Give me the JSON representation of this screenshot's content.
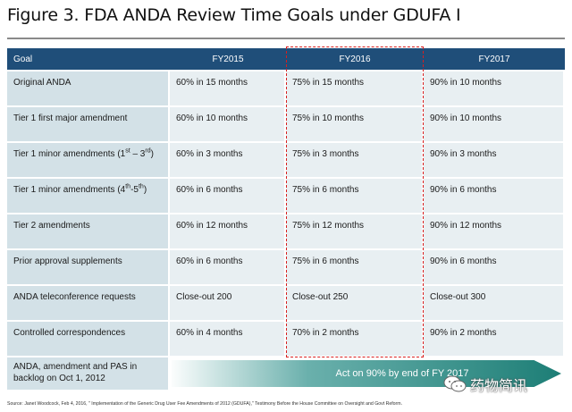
{
  "figure": {
    "title": "Figure 3. FDA ANDA Review Time Goals under GDUFA I"
  },
  "table": {
    "headers": [
      "Goal",
      "FY2015",
      "FY2016",
      "FY2017"
    ],
    "rows": [
      {
        "goal": "Original ANDA",
        "fy2015": "60% in 15 months",
        "fy2016": "75% in 15 months",
        "fy2017": "90% in 10 months"
      },
      {
        "goal": "Tier 1 first major amendment",
        "fy2015": "60% in 10 months",
        "fy2016": "75% in 10 months",
        "fy2017": "90% in 10 months"
      },
      {
        "goal_pre": "Tier 1 minor amendments (1",
        "goal_sup1": "st",
        "goal_mid": " – 3",
        "goal_sup2": "rd",
        "goal_post": ")",
        "fy2015": "60% in 3 months",
        "fy2016": "75% in 3 months",
        "fy2017": "90% in 3 months"
      },
      {
        "goal_pre": "Tier 1 minor amendments (4",
        "goal_sup1": "th",
        "goal_mid": "-5",
        "goal_sup2": "th",
        "goal_post": ")",
        "fy2015": "60% in 6 months",
        "fy2016": "75% in 6 months",
        "fy2017": "90% in 6 months"
      },
      {
        "goal": "Tier 2 amendments",
        "fy2015": "60% in 12 months",
        "fy2016": "75% in 12 months",
        "fy2017": "90% in 12 months"
      },
      {
        "goal": "Prior approval supplements",
        "fy2015": "60% in 6 months",
        "fy2016": "75% in 6 months",
        "fy2017": "90% in 6 months"
      },
      {
        "goal": "ANDA teleconference requests",
        "fy2015": "Close-out 200",
        "fy2016": "Close-out 250",
        "fy2017": "Close-out 300"
      },
      {
        "goal": "Controlled correspondences",
        "fy2015": "60% in 4 months",
        "fy2016": "70% in 2 months",
        "fy2017": "90% in 2 months"
      }
    ],
    "backlog": {
      "label": "ANDA, amendment and PAS in backlog on Oct 1, 2012",
      "arrow_text": "Act on 90% by end of FY 2017"
    }
  },
  "source": "Source: Janet Woodcock, Feb 4, 2016, \" Implementation of the Generic Drug User Fee Amendments of 2012 (GDUFA),\" Testimony Before the House Committee on Oversight and Govt Reform.",
  "watermark": {
    "text": "药物简讯",
    "icon": "wechat-icon"
  },
  "colors": {
    "header_bg": "#1f4e79",
    "label_bg": "#d3e1e7",
    "value_bg": "#e8eff2",
    "arrow_end": "#1d7e76",
    "highlight_border": "#d81f1f"
  }
}
